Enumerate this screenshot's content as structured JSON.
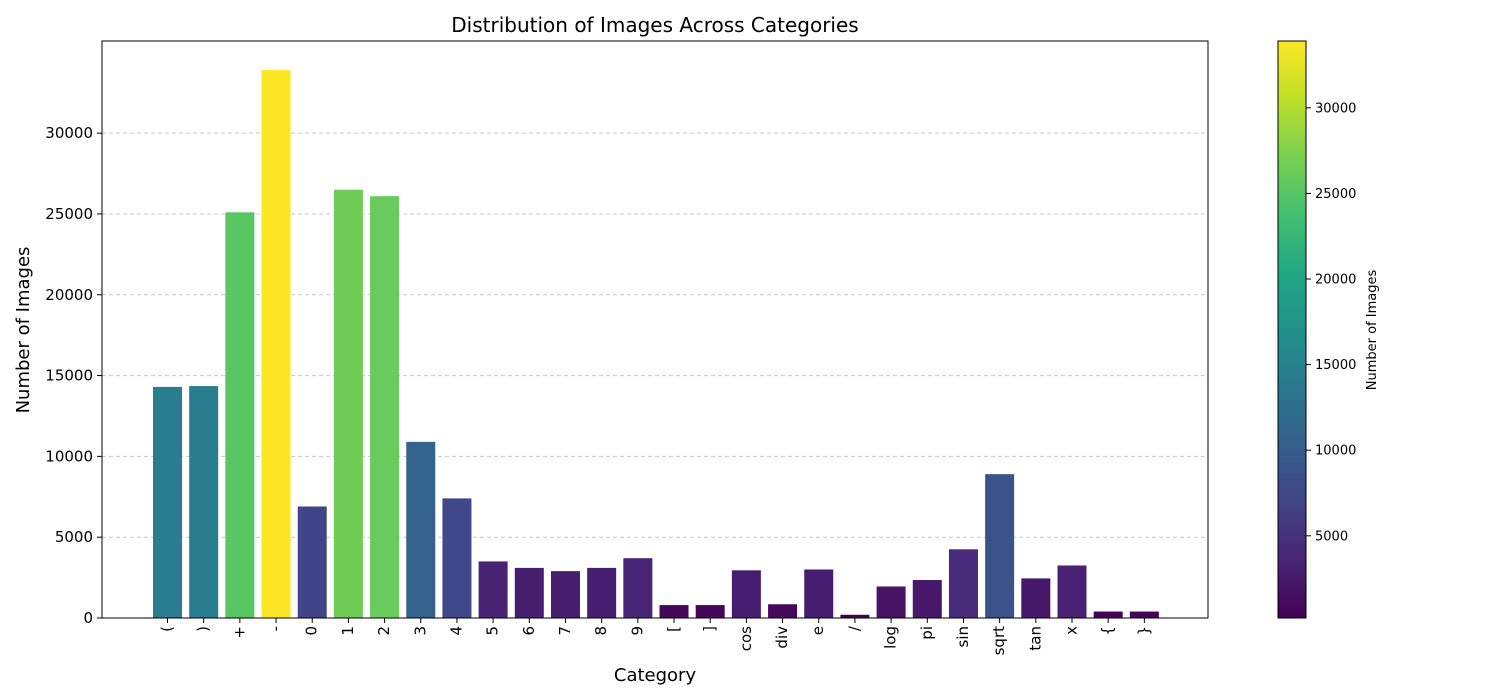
{
  "chart_data": {
    "type": "bar",
    "title": "Distribution of Images Across Categories",
    "xlabel": "Category",
    "ylabel": "Number of Images",
    "categories": [
      "(",
      ")",
      "+",
      "-",
      "0",
      "1",
      "2",
      "3",
      "4",
      "5",
      "6",
      "7",
      "8",
      "9",
      "[",
      "]",
      "cos",
      "div",
      "e",
      "/",
      "log",
      "pi",
      "sin",
      "sqrt",
      "tan",
      "x",
      "{",
      "}"
    ],
    "values": [
      14300,
      14350,
      25100,
      33900,
      6900,
      26500,
      26100,
      10900,
      7400,
      3500,
      3100,
      2900,
      3100,
      3700,
      800,
      800,
      2950,
      850,
      3000,
      200,
      1950,
      2350,
      4250,
      8900,
      2450,
      3250,
      400,
      400
    ],
    "ylim": [
      0,
      35700
    ],
    "yticks": [
      0,
      5000,
      10000,
      15000,
      20000,
      25000,
      30000
    ],
    "grid": "y-dashed",
    "colormap": "viridis",
    "colorbar": {
      "label": "Number of Images",
      "range": [
        200,
        33900
      ],
      "ticks": [
        5000,
        10000,
        15000,
        20000,
        25000,
        30000
      ]
    }
  }
}
